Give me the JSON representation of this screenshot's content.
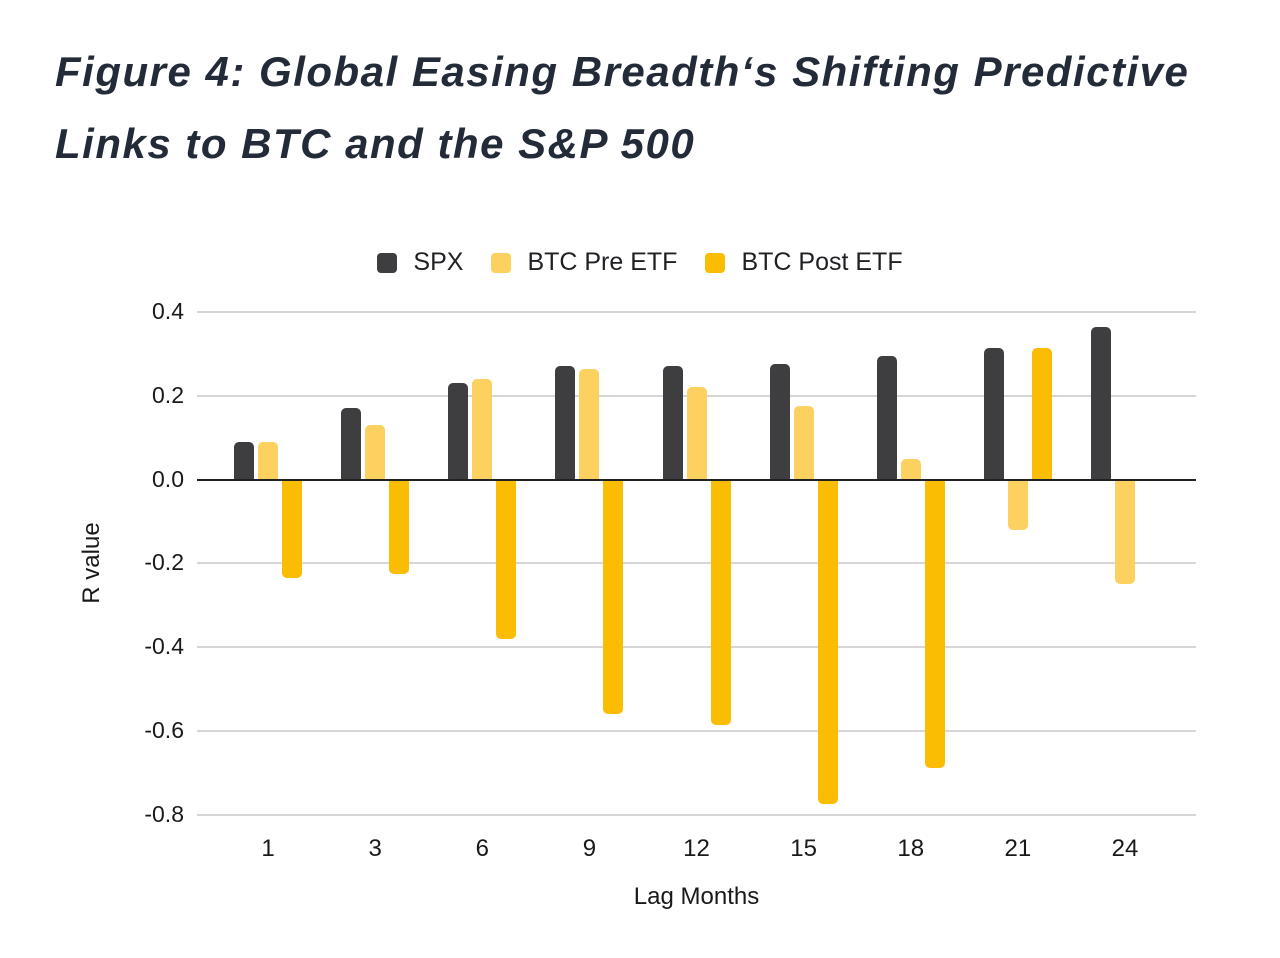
{
  "title": "Figure 4: Global Easing Breadth‘s Shifting Predictive Links to BTC and the S&P 500",
  "colors": {
    "title_text": "#242b38",
    "axis_text": "#19191b",
    "legend_text": "#1f2023",
    "gridline": "#d6d6d6",
    "zero_line": "#212121",
    "background": "#ffffff",
    "spx": "#3e3e40",
    "btc_pre_etf": "#fcd160",
    "btc_post_etf": "#fbbc04"
  },
  "chart_data": {
    "type": "bar",
    "title": "Figure 4: Global Easing Breadth‘s Shifting Predictive Links to BTC and the S&P 500",
    "categories": [
      "1",
      "3",
      "6",
      "9",
      "12",
      "15",
      "18",
      "21",
      "24"
    ],
    "series": [
      {
        "name": "SPX",
        "color": "#3e3e40",
        "values": [
          0.09,
          0.17,
          0.23,
          0.27,
          0.27,
          0.275,
          0.295,
          0.315,
          0.365
        ]
      },
      {
        "name": "BTC Pre ETF",
        "color": "#fcd160",
        "values": [
          0.09,
          0.13,
          0.24,
          0.265,
          0.22,
          0.175,
          0.05,
          -0.12,
          -0.25
        ]
      },
      {
        "name": "BTC Post ETF",
        "color": "#fbbc04",
        "values": [
          -0.235,
          -0.225,
          -0.38,
          -0.56,
          -0.585,
          -0.775,
          -0.69,
          0.315,
          null
        ]
      }
    ],
    "xlabel": "Lag Months",
    "ylabel": "R value",
    "ylim": [
      -0.8,
      0.4
    ],
    "ytick_step": 0.2,
    "grid": true,
    "legend_position": "top"
  }
}
